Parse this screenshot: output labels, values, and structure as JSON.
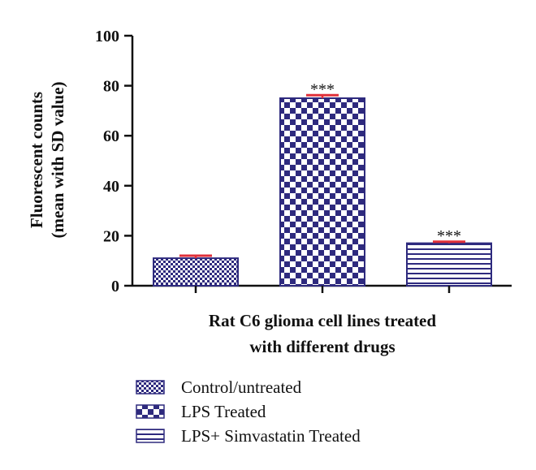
{
  "chart_data": {
    "type": "bar",
    "categories": [
      "Control/untreated",
      "LPS Treated",
      "LPS+ Simvastatin Treated"
    ],
    "values": [
      11,
      75,
      17
    ],
    "errors": [
      1,
      1.2,
      0.6
    ],
    "annotations": [
      "",
      "***",
      "***"
    ],
    "xlabel_lines": [
      "Rat C6 glioma cell lines treated",
      "with different drugs"
    ],
    "ylabel_lines": [
      "Fluorescent counts",
      "(mean with SD value)"
    ],
    "ylim": [
      0,
      100
    ],
    "yticks": [
      "0",
      "20",
      "40",
      "60",
      "80",
      "100"
    ],
    "legend": [
      "Control/untreated",
      "LPS Treated",
      "LPS+ Simvastatin Treated"
    ],
    "legend_position": "bottom",
    "colors": {
      "bar": "#2e2a7e",
      "error_bar": "#e0303a",
      "axis": "#111111"
    },
    "patterns": [
      "fine-check",
      "coarse-check",
      "horizontal-lines"
    ]
  }
}
